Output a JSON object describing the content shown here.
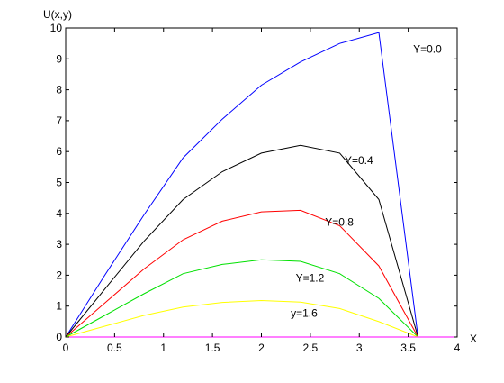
{
  "chart_data": {
    "type": "line",
    "title": "",
    "xlabel": "X",
    "ylabel": "U(x,y)",
    "xlim": [
      0,
      4
    ],
    "ylim": [
      0,
      10
    ],
    "xticks": [
      "0",
      "0.5",
      "1",
      "1.5",
      "2",
      "2.5",
      "3",
      "3.5",
      "4"
    ],
    "yticks": [
      "0",
      "1",
      "2",
      "3",
      "4",
      "5",
      "6",
      "7",
      "8",
      "9",
      "10"
    ],
    "grid": false,
    "x": [
      0,
      0.4,
      0.8,
      1.2,
      1.6,
      2.0,
      2.4,
      2.8,
      3.2,
      3.6,
      4.0
    ],
    "series": [
      {
        "name": "Y=0.0",
        "color": "#0000ff",
        "values": [
          0,
          2.0,
          3.95,
          5.8,
          7.05,
          8.15,
          8.9,
          9.5,
          9.85,
          0,
          0
        ],
        "label_at": [
          3.55,
          9.2
        ]
      },
      {
        "name": "Y=0.4",
        "color": "#000000",
        "values": [
          0,
          1.55,
          3.1,
          4.45,
          5.35,
          5.95,
          6.2,
          5.95,
          4.45,
          0,
          0
        ],
        "label_at": [
          2.85,
          5.6
        ]
      },
      {
        "name": "Y=0.8",
        "color": "#ff0000",
        "values": [
          0,
          1.1,
          2.2,
          3.15,
          3.75,
          4.05,
          4.1,
          3.6,
          2.3,
          0,
          0
        ],
        "label_at": [
          2.65,
          3.6
        ]
      },
      {
        "name": "Y=1.2",
        "color": "#00e000",
        "values": [
          0,
          0.7,
          1.4,
          2.05,
          2.35,
          2.5,
          2.45,
          2.05,
          1.25,
          0,
          0
        ],
        "label_at": [
          2.35,
          1.8
        ]
      },
      {
        "name": "y=1.6",
        "color": "#ffff00",
        "values": [
          0,
          0.35,
          0.7,
          0.97,
          1.12,
          1.18,
          1.13,
          0.92,
          0.5,
          0,
          0
        ],
        "label_at": [
          2.3,
          0.65
        ]
      },
      {
        "name": "",
        "color": "#ff00ff",
        "values": [
          0,
          0,
          0,
          0,
          0,
          0,
          0,
          0,
          0,
          0,
          0
        ]
      }
    ]
  }
}
